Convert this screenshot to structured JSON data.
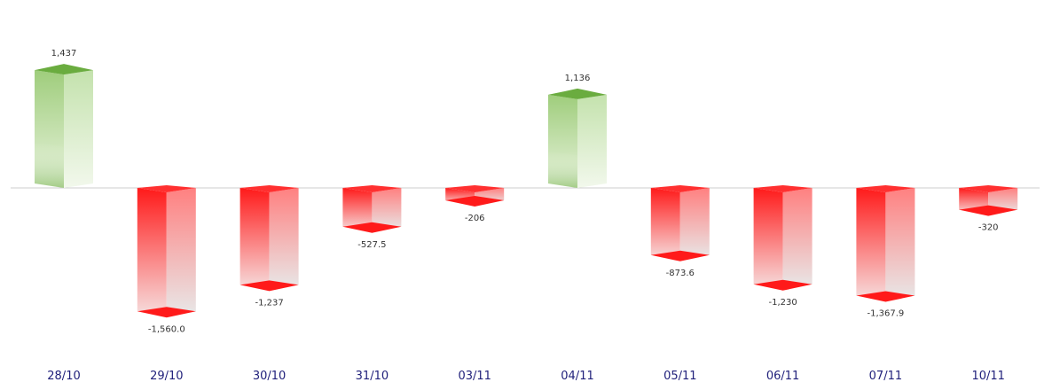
{
  "chart_data": {
    "type": "bar",
    "categories": [
      "28/10",
      "29/10",
      "30/10",
      "31/10",
      "03/11",
      "04/11",
      "05/11",
      "06/11",
      "07/11",
      "10/11"
    ],
    "values": [
      1437,
      -1560.0,
      -1237,
      -527.5,
      -206,
      1136,
      -873.6,
      -1230,
      -1367.9,
      -320
    ],
    "value_labels": [
      "1,437",
      "-1,560.0",
      "-1,237",
      "-527.5",
      "-206",
      "1,136",
      "-873.6",
      "-1,230",
      "-1,367.9",
      "-320"
    ],
    "title": "",
    "xlabel": "",
    "ylabel": "",
    "ylim": [
      -2000,
      2000
    ],
    "grid": false,
    "legend": "none",
    "colors": {
      "positive_dark": "#6aac3f",
      "positive_light": "#e8f3dd",
      "negative_dark": "#ff1a1a",
      "negative_light": "#e8e8e8",
      "zero_line": "#cccccc",
      "category_text": "#1f1f7a",
      "value_text": "#333333"
    }
  }
}
